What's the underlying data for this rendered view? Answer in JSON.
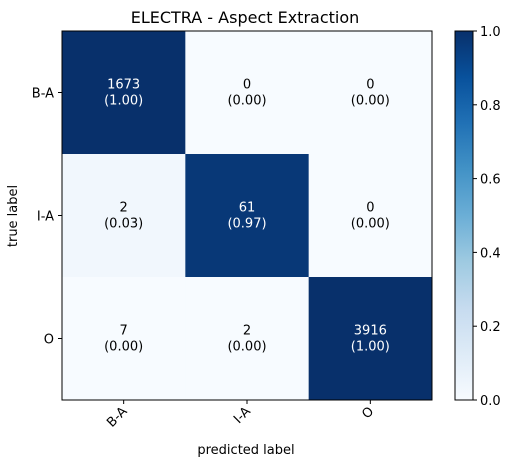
{
  "chart_data": {
    "type": "heatmap",
    "title": "ELECTRA - Aspect Extraction",
    "xlabel": "predicted label",
    "ylabel": "true label",
    "x_categories": [
      "B-A",
      "I-A",
      "O"
    ],
    "y_categories": [
      "B-A",
      "I-A",
      "O"
    ],
    "counts": [
      [
        1673,
        0,
        0
      ],
      [
        2,
        61,
        0
      ],
      [
        7,
        2,
        3916
      ]
    ],
    "normalized": [
      [
        1.0,
        0.0,
        0.0
      ],
      [
        0.03,
        0.97,
        0.0
      ],
      [
        0.0,
        0.0,
        1.0
      ]
    ],
    "cell_labels": [
      [
        "(1.00)",
        "(0.00)",
        "(0.00)"
      ],
      [
        "(0.03)",
        "(0.97)",
        "(0.00)"
      ],
      [
        "(0.00)",
        "(0.00)",
        "(1.00)"
      ]
    ],
    "colormap": "Blues",
    "colorbar": {
      "range": [
        0.0,
        1.0
      ],
      "ticks": [
        "0.0",
        "0.2",
        "0.4",
        "0.6",
        "0.8",
        "1.0"
      ],
      "tick_values": [
        0.0,
        0.2,
        0.4,
        0.6,
        0.8,
        1.0
      ]
    },
    "grid": false,
    "colors": {
      "low": "#f7fbff",
      "high": "#08306b",
      "text_dark": "#000000",
      "text_light": "#ffffff"
    }
  }
}
